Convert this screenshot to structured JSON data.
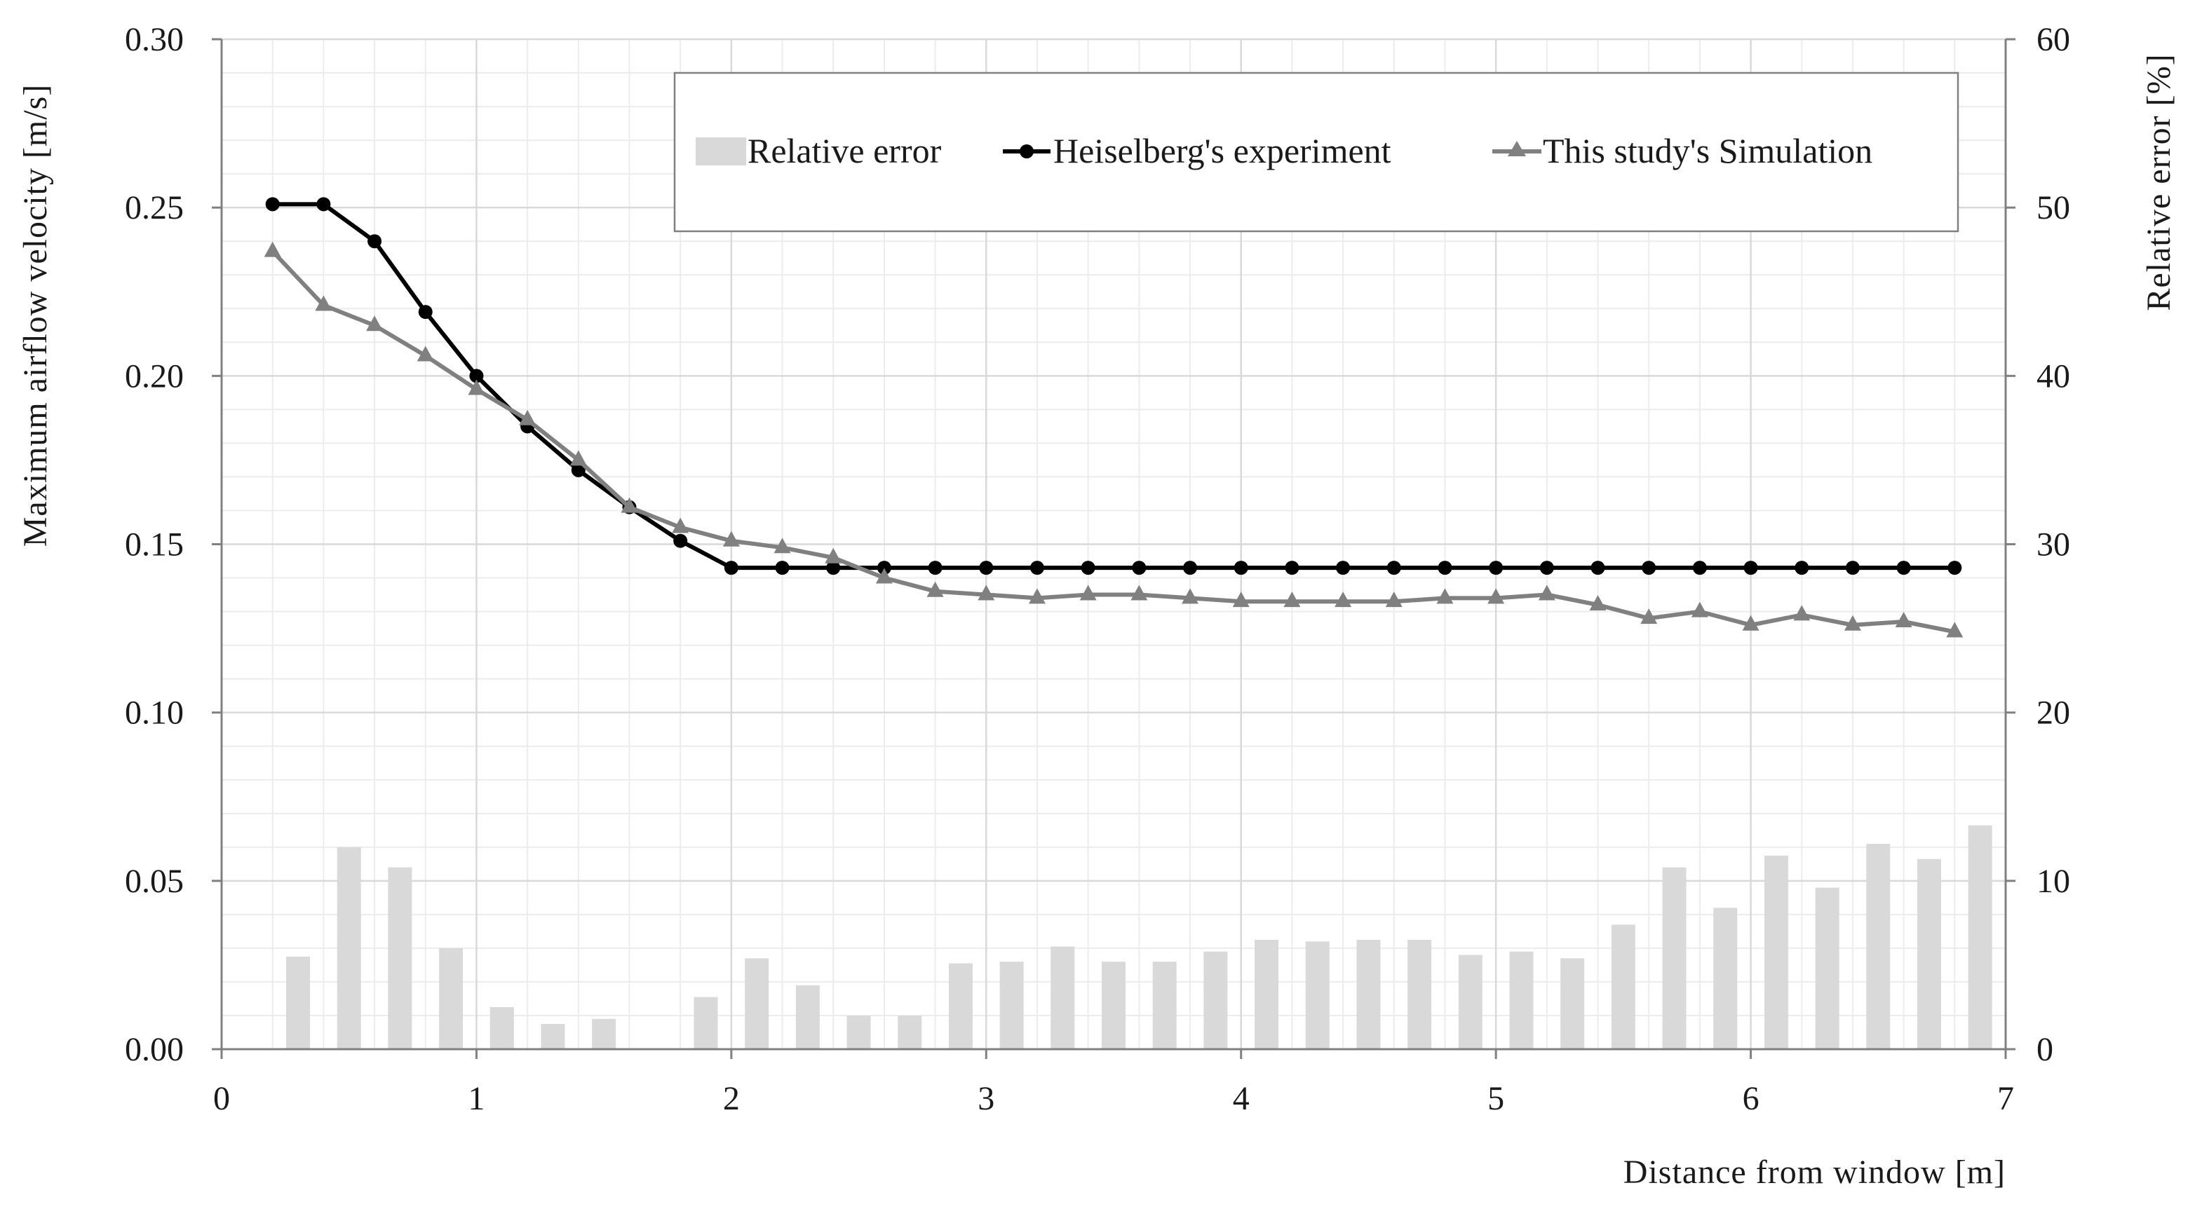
{
  "chart_data": {
    "type": "bar+line",
    "xlabel": "Distance from window [m]",
    "ylabel_left": "Maximum airflow velocity  [m/s]",
    "ylabel_right": "Relative error [%]",
    "xlim": [
      0,
      7
    ],
    "ylim_left": [
      0,
      0.3
    ],
    "ylim_right": [
      0,
      60
    ],
    "x_ticks": [
      "0",
      "1",
      "2",
      "3",
      "4",
      "5",
      "6",
      "7"
    ],
    "y_left_ticks": [
      "0.00",
      "0.05",
      "0.10",
      "0.15",
      "0.20",
      "0.25",
      "0.30"
    ],
    "y_right_ticks": [
      "0",
      "10",
      "20",
      "30",
      "40",
      "50",
      "60"
    ],
    "grid": true,
    "legend_position": "top",
    "colors": {
      "bars": "#d9d9d9",
      "experiment": "#000000",
      "simulation": "#808080",
      "grid": "#d9d9d9",
      "axis": "#808080"
    },
    "bars": {
      "name": "Relative error",
      "axis": "right",
      "x": [
        0.3,
        0.5,
        0.7,
        0.9,
        1.1,
        1.3,
        1.5,
        1.9,
        2.1,
        2.3,
        2.5,
        2.7,
        2.9,
        3.1,
        3.3,
        3.5,
        3.7,
        3.9,
        4.1,
        4.3,
        4.5,
        4.7,
        4.9,
        5.1,
        5.3,
        5.5,
        5.7,
        5.9,
        6.1,
        6.3,
        6.5,
        6.7,
        6.9
      ],
      "values": [
        5.5,
        12.0,
        10.8,
        6.0,
        2.5,
        1.5,
        1.8,
        3.1,
        5.4,
        3.8,
        2.0,
        2.0,
        5.1,
        5.2,
        6.1,
        5.2,
        5.2,
        5.8,
        6.5,
        6.4,
        6.5,
        6.5,
        5.6,
        5.8,
        5.4,
        7.4,
        10.8,
        8.4,
        11.5,
        9.6,
        12.2,
        11.3,
        13.3
      ]
    },
    "series": [
      {
        "name": "Heiselberg's experiment",
        "axis": "left",
        "marker": "circle",
        "x": [
          0.2,
          0.4,
          0.6,
          0.8,
          1.0,
          1.2,
          1.4,
          1.6,
          1.8,
          2.0,
          2.2,
          2.4,
          2.6,
          2.8,
          3.0,
          3.2,
          3.4,
          3.6,
          3.8,
          4.0,
          4.2,
          4.4,
          4.6,
          4.8,
          5.0,
          5.2,
          5.4,
          5.6,
          5.8,
          6.0,
          6.2,
          6.4,
          6.6,
          6.8
        ],
        "values": [
          0.251,
          0.251,
          0.24,
          0.219,
          0.2,
          0.185,
          0.172,
          0.161,
          0.151,
          0.143,
          0.143,
          0.143,
          0.143,
          0.143,
          0.143,
          0.143,
          0.143,
          0.143,
          0.143,
          0.143,
          0.143,
          0.143,
          0.143,
          0.143,
          0.143,
          0.143,
          0.143,
          0.143,
          0.143,
          0.143,
          0.143,
          0.143,
          0.143,
          0.143
        ]
      },
      {
        "name": "This study's Simulation",
        "axis": "left",
        "marker": "triangle",
        "x": [
          0.2,
          0.4,
          0.6,
          0.8,
          1.0,
          1.2,
          1.4,
          1.6,
          1.8,
          2.0,
          2.2,
          2.4,
          2.6,
          2.8,
          3.0,
          3.2,
          3.4,
          3.6,
          3.8,
          4.0,
          4.2,
          4.4,
          4.6,
          4.8,
          5.0,
          5.2,
          5.4,
          5.6,
          5.8,
          6.0,
          6.2,
          6.4,
          6.6,
          6.8
        ],
        "values": [
          0.237,
          0.221,
          0.215,
          0.206,
          0.196,
          0.187,
          0.175,
          0.161,
          0.155,
          0.151,
          0.149,
          0.146,
          0.14,
          0.136,
          0.135,
          0.134,
          0.135,
          0.135,
          0.134,
          0.133,
          0.133,
          0.133,
          0.133,
          0.134,
          0.134,
          0.135,
          0.132,
          0.128,
          0.13,
          0.126,
          0.129,
          0.126,
          0.127,
          0.124
        ]
      }
    ]
  }
}
